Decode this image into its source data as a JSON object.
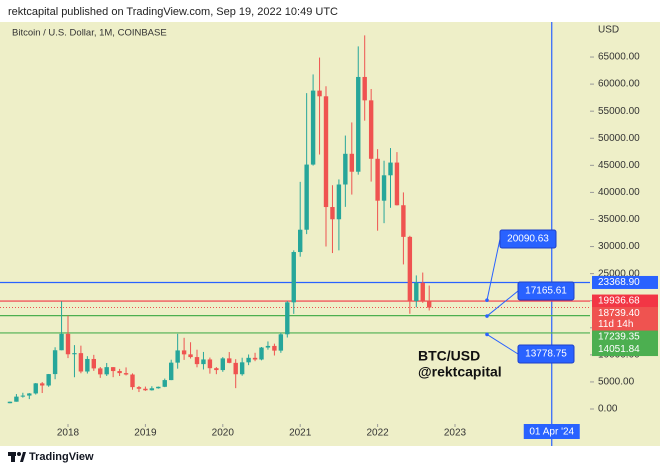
{
  "header": "rektcapital published on TradingView.com, Sep 19, 2022 10:49 UTC",
  "footer": "TradingView",
  "chart_data": {
    "type": "candlestick",
    "title": "Bitcoin / U.S. Dollar, 1M, COINBASE",
    "y_axis_label": "USD",
    "up_color": "#26a69a",
    "down_color": "#ef5350",
    "x": [
      2017.25,
      2017.3333,
      2017.4167,
      2017.5,
      2017.5833,
      2017.6667,
      2017.75,
      2017.8333,
      2017.9167,
      2018,
      2018.0833,
      2018.1667,
      2018.25,
      2018.3333,
      2018.4167,
      2018.5,
      2018.5833,
      2018.6667,
      2018.75,
      2018.8333,
      2018.9167,
      2019,
      2019.0833,
      2019.1667,
      2019.25,
      2019.3333,
      2019.4167,
      2019.5,
      2019.5833,
      2019.6667,
      2019.75,
      2019.8333,
      2019.9167,
      2020,
      2020.0833,
      2020.1667,
      2020.25,
      2020.3333,
      2020.4167,
      2020.5,
      2020.5833,
      2020.6667,
      2020.75,
      2020.8333,
      2020.9167,
      2021,
      2021.0833,
      2021.1667,
      2021.25,
      2021.3333,
      2021.4167,
      2021.5,
      2021.5833,
      2021.6667,
      2021.75,
      2021.8333,
      2021.9167,
      2022,
      2022.0833,
      2022.1667,
      2022.25,
      2022.3333,
      2022.4167,
      2022.5,
      2022.5833,
      2022.6667
    ],
    "open": [
      1072,
      1348,
      2286,
      2480,
      2875,
      4740,
      4340,
      6450,
      10850,
      13880,
      10110,
      10320,
      6925,
      9240,
      7500,
      6400,
      7730,
      7010,
      6630,
      6370,
      4040,
      3740,
      3460,
      3830,
      4100,
      5340,
      8560,
      10820,
      10090,
      9590,
      8290,
      9150,
      7540,
      7190,
      9350,
      8520,
      6420,
      8620,
      9450,
      9140,
      11350,
      11650,
      10780,
      13800,
      19700,
      28990,
      33110,
      45140,
      58800,
      57750,
      37300,
      35040,
      41460,
      47130,
      43820,
      61320,
      57000,
      46210,
      38470,
      43160,
      45510,
      37630,
      31790,
      19930,
      23300,
      20050
    ],
    "high": [
      1362,
      2760,
      3000,
      2950,
      4800,
      4980,
      6470,
      11400,
      19891,
      17250,
      11800,
      11700,
      9760,
      10000,
      7760,
      8500,
      7750,
      7410,
      7680,
      6590,
      4250,
      4140,
      4200,
      4150,
      5620,
      9100,
      13880,
      13150,
      12330,
      10950,
      10540,
      9500,
      7750,
      9590,
      10520,
      9200,
      9470,
      10070,
      10380,
      11450,
      12480,
      12070,
      14100,
      19940,
      29300,
      41950,
      58330,
      61790,
      64900,
      59600,
      41330,
      42400,
      50500,
      52920,
      66970,
      69000,
      59100,
      47990,
      45850,
      48190,
      47440,
      40000,
      31990,
      24670,
      25200,
      22800
    ],
    "low": [
      1063,
      1348,
      2100,
      1830,
      2670,
      2950,
      4100,
      5500,
      10850,
      9400,
      5870,
      6600,
      6550,
      7040,
      5750,
      6100,
      5880,
      6100,
      6200,
      3550,
      3130,
      3350,
      3400,
      3750,
      4040,
      5330,
      7450,
      9070,
      9320,
      7700,
      7300,
      6530,
      6430,
      6870,
      8450,
      3850,
      6150,
      8100,
      8830,
      8990,
      10960,
      9880,
      10380,
      13200,
      17570,
      28130,
      32300,
      44950,
      47000,
      30000,
      28800,
      29300,
      37330,
      39600,
      43280,
      53250,
      42000,
      32930,
      34320,
      37160,
      37580,
      26700,
      17590,
      18780,
      19600,
      18200
    ],
    "close": [
      1348,
      2286,
      2480,
      2875,
      4740,
      4340,
      6450,
      10850,
      13880,
      10110,
      10320,
      6925,
      9240,
      7500,
      6400,
      7730,
      7010,
      6630,
      6370,
      4040,
      3740,
      3460,
      3830,
      4100,
      5340,
      8560,
      10820,
      10090,
      9590,
      8290,
      9150,
      7540,
      7190,
      9350,
      8520,
      6420,
      8620,
      9450,
      9140,
      11350,
      11650,
      10780,
      13800,
      19700,
      28990,
      33110,
      45140,
      58800,
      57750,
      37300,
      35040,
      41460,
      47130,
      43820,
      61320,
      57000,
      46210,
      38470,
      43160,
      45510,
      37630,
      31790,
      19930,
      23300,
      20050,
      18739.4
    ],
    "xlim": [
      2017.1214,
      2024.7442
    ],
    "xticks": [
      2018,
      2019,
      2020,
      2021,
      2022,
      2023
    ],
    "ylim": [
      -2400,
      71470
    ],
    "yticks": [
      {
        "value": 0,
        "label": "0.00"
      },
      {
        "value": 5000,
        "label": "5000.00"
      },
      {
        "value": 10000,
        "label": "10000.00"
      },
      {
        "value": 15000,
        "label": "15000.00"
      },
      {
        "value": 20000,
        "label": "20000.00"
      },
      {
        "value": 25000,
        "label": "25000.00"
      },
      {
        "value": 30000,
        "label": "30000.00"
      },
      {
        "value": 35000,
        "label": "35000.00"
      },
      {
        "value": 40000,
        "label": "40000.00"
      },
      {
        "value": 45000,
        "label": "45000.00"
      },
      {
        "value": 50000,
        "label": "50000.00"
      },
      {
        "value": 55000,
        "label": "55000.00"
      },
      {
        "value": 60000,
        "label": "60000.00"
      },
      {
        "value": 65000,
        "label": "65000.00"
      }
    ],
    "levels": [
      {
        "value": 23368.9,
        "label": "23368.90",
        "color": "#2962ff"
      },
      {
        "value": 19936.68,
        "label": "19936.68",
        "color": "#f23645"
      },
      {
        "value": 17239.35,
        "label": "17239.35",
        "color": "#4caf50"
      },
      {
        "value": 14051.84,
        "label": "14051.84",
        "color": "#4caf50"
      }
    ],
    "last_price": {
      "value": 18739.4,
      "label": "18739.40",
      "countdown": "11d 14h",
      "color": "#ef5350"
    },
    "annotations": [
      {
        "value": 20090.63,
        "label": "20090.63"
      },
      {
        "value": 17165.61,
        "label": "17165.61"
      },
      {
        "value": 13778.75,
        "label": "13778.75"
      }
    ],
    "crosshair": {
      "value": 2024.25,
      "label": "01 Apr '24",
      "color": "#2962ff"
    },
    "watermark": [
      "BTC/USD",
      "@rektcapital"
    ]
  }
}
